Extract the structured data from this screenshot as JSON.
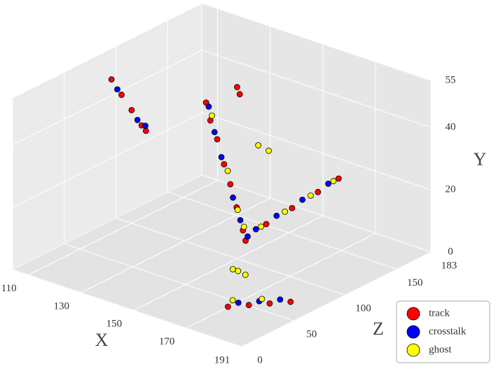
{
  "chart_data": {
    "type": "scatter3d",
    "xlabel": "X",
    "ylabel": "Y",
    "zlabel": "Z",
    "xlim": [
      104,
      191
    ],
    "ylim": [
      0,
      55
    ],
    "zlim": [
      0,
      183
    ],
    "xticks": [
      110,
      130,
      150,
      170,
      191
    ],
    "yticks": [
      0,
      20,
      40,
      55
    ],
    "zticks": [
      0,
      50,
      100,
      150,
      183
    ],
    "grid": true,
    "legend": "lower right",
    "series": [
      {
        "name": "track",
        "color": "#ff0000",
        "x": [
          118,
          123,
          128,
          133,
          135,
          150,
          151,
          150,
          152,
          155,
          158,
          160,
          162,
          164,
          165,
          165,
          165,
          165,
          165,
          174,
          178,
          182,
          186
        ],
        "y": [
          55,
          52,
          49,
          46,
          45,
          55,
          53,
          55,
          50,
          45,
          38,
          32,
          25,
          18,
          15,
          17,
          18,
          19,
          20,
          3,
          3,
          3,
          3
        ],
        "z": [
          60,
          57,
          54,
          51,
          50,
          100,
          100,
          70,
          69,
          68,
          67,
          68,
          69,
          70,
          70,
          90,
          115,
          140,
          160,
          30,
          40,
          50,
          60
        ]
      },
      {
        "name": "crosstalk",
        "color": "#0000ff",
        "x": [
          121,
          131,
          134,
          151,
          154,
          157,
          161,
          163,
          165,
          165,
          165,
          165,
          165,
          176,
          180,
          184
        ],
        "y": [
          53,
          47,
          46,
          54,
          47,
          40,
          28,
          21,
          16,
          17,
          18,
          19,
          20,
          4,
          4,
          4
        ],
        "z": [
          58,
          52,
          52,
          70,
          68,
          67,
          68,
          70,
          72,
          80,
          100,
          125,
          150,
          35,
          45,
          55
        ]
      },
      {
        "name": "ghost",
        "color": "#ffff00",
        "x": [
          153,
          159,
          162,
          164,
          165,
          165,
          165,
          165,
          160,
          162,
          168,
          170,
          172,
          175,
          181
        ],
        "y": [
          52,
          36,
          24,
          19,
          17,
          18,
          19,
          20,
          40,
          38,
          10,
          10,
          9,
          5,
          5
        ],
        "z": [
          68,
          68,
          70,
          71,
          85,
          108,
          133,
          155,
          95,
          100,
          50,
          50,
          52,
          32,
          45
        ]
      }
    ]
  }
}
